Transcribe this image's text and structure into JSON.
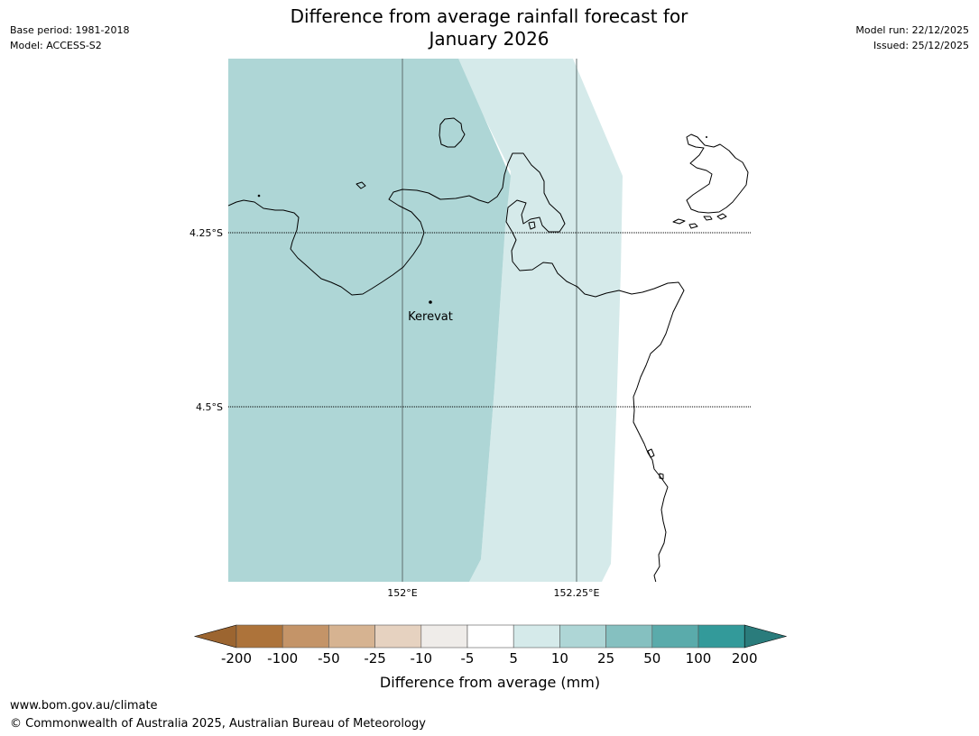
{
  "header": {
    "base_period": "Base period: 1981-2018",
    "model": "Model: ACCESS-S2",
    "model_run": "Model run: 22/12/2025",
    "issued": "Issued: 25/12/2025",
    "title_line1": "Difference from average rainfall forecast for",
    "title_line2": "January 2026"
  },
  "map": {
    "lat_labels": [
      "4.25°S",
      "4.5°S"
    ],
    "lon_labels": [
      "152°E",
      "152.25°E"
    ],
    "place": {
      "name": "Kerevat"
    },
    "colors": {
      "band_10_25": "#aed6d6",
      "band_5_10": "#d5eaea",
      "coast": "#000000"
    }
  },
  "legend": {
    "title": "Difference from average (mm)",
    "ticks": [
      "-200",
      "-100",
      "-50",
      "-25",
      "-10",
      "-5",
      "5",
      "10",
      "25",
      "50",
      "100",
      "200"
    ],
    "colors": [
      "#9c6530",
      "#ad733a",
      "#c49468",
      "#d6b391",
      "#e6d2c0",
      "#efece9",
      "#ffffff",
      "#d5eaea",
      "#aed6d6",
      "#85c0c0",
      "#5aabab",
      "#339a9a",
      "#2a7c7c"
    ]
  },
  "footer": {
    "url": "www.bom.gov.au/climate",
    "copyright": "© Commonwealth of Australia 2025, Australian Bureau of Meteorology"
  }
}
